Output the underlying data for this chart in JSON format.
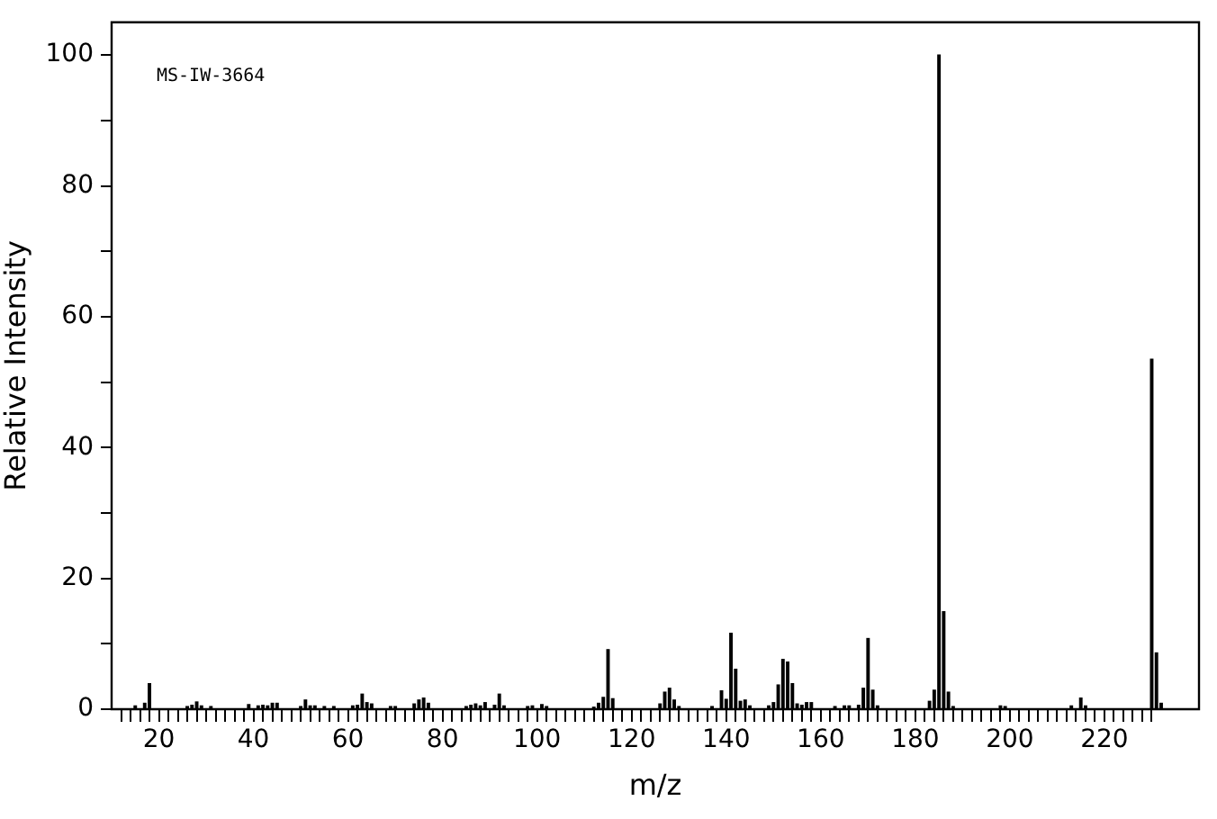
{
  "chart_data": {
    "type": "bar",
    "xlabel": "m/z",
    "ylabel": "Relative Intensity",
    "annotations": [
      "MS-IW-3664"
    ],
    "x": [
      15,
      17,
      18,
      26,
      27,
      28,
      29,
      31,
      39,
      41,
      42,
      43,
      44,
      45,
      50,
      51,
      52,
      53,
      55,
      57,
      61,
      62,
      63,
      64,
      65,
      69,
      70,
      74,
      75,
      76,
      77,
      85,
      86,
      87,
      88,
      89,
      91,
      92,
      93,
      98,
      99,
      101,
      102,
      112,
      113,
      114,
      115,
      116,
      126,
      127,
      128,
      129,
      130,
      137,
      139,
      140,
      141,
      142,
      143,
      144,
      145,
      149,
      150,
      151,
      152,
      153,
      154,
      155,
      156,
      157,
      158,
      163,
      165,
      166,
      168,
      169,
      170,
      171,
      172,
      183,
      184,
      185,
      186,
      187,
      188,
      198,
      199,
      213,
      215,
      216,
      230,
      231,
      232
    ],
    "values": [
      0.5,
      0.9,
      3.9,
      0.4,
      0.6,
      1.1,
      0.5,
      0.4,
      0.7,
      0.5,
      0.6,
      0.5,
      0.9,
      0.9,
      0.4,
      1.4,
      0.5,
      0.5,
      0.4,
      0.4,
      0.5,
      0.6,
      2.3,
      1.0,
      0.8,
      0.4,
      0.4,
      0.8,
      1.4,
      1.7,
      0.9,
      0.4,
      0.6,
      0.8,
      0.5,
      1.0,
      0.6,
      2.3,
      0.5,
      0.4,
      0.5,
      0.7,
      0.4,
      0.3,
      0.9,
      1.8,
      9.1,
      1.6,
      0.8,
      2.6,
      3.2,
      1.4,
      0.4,
      0.4,
      2.8,
      1.5,
      11.6,
      6.1,
      1.2,
      1.4,
      0.5,
      0.5,
      1.0,
      3.7,
      7.6,
      7.2,
      3.9,
      0.8,
      0.6,
      1.0,
      1.0,
      0.4,
      0.5,
      0.5,
      0.6,
      3.2,
      10.8,
      2.9,
      0.5,
      1.2,
      2.9,
      100,
      14.9,
      2.6,
      0.4,
      0.5,
      0.4,
      0.5,
      1.7,
      0.5,
      53.5,
      8.6,
      0.9
    ],
    "color": "#000000",
    "xlim": [
      10,
      240
    ],
    "xticks": [
      {
        "value": 12,
        "label": null
      },
      {
        "value": 14,
        "label": null
      },
      {
        "value": 16,
        "label": null
      },
      {
        "value": 18,
        "label": null
      },
      20,
      {
        "value": 22,
        "label": null
      },
      {
        "value": 24,
        "label": null
      },
      {
        "value": 26,
        "label": null
      },
      {
        "value": 28,
        "label": null
      },
      {
        "value": 30,
        "label": null
      },
      {
        "value": 32,
        "label": null
      },
      {
        "value": 34,
        "label": null
      },
      {
        "value": 36,
        "label": null
      },
      {
        "value": 38,
        "label": null
      },
      40,
      {
        "value": 42,
        "label": null
      },
      {
        "value": 44,
        "label": null
      },
      {
        "value": 46,
        "label": null
      },
      {
        "value": 48,
        "label": null
      },
      {
        "value": 50,
        "label": null
      },
      {
        "value": 52,
        "label": null
      },
      {
        "value": 54,
        "label": null
      },
      {
        "value": 56,
        "label": null
      },
      {
        "value": 58,
        "label": null
      },
      60,
      {
        "value": 62,
        "label": null
      },
      {
        "value": 64,
        "label": null
      },
      {
        "value": 66,
        "label": null
      },
      {
        "value": 68,
        "label": null
      },
      {
        "value": 70,
        "label": null
      },
      {
        "value": 72,
        "label": null
      },
      {
        "value": 74,
        "label": null
      },
      {
        "value": 76,
        "label": null
      },
      {
        "value": 78,
        "label": null
      },
      80,
      {
        "value": 82,
        "label": null
      },
      {
        "value": 84,
        "label": null
      },
      {
        "value": 86,
        "label": null
      },
      {
        "value": 88,
        "label": null
      },
      {
        "value": 90,
        "label": null
      },
      {
        "value": 92,
        "label": null
      },
      {
        "value": 94,
        "label": null
      },
      {
        "value": 96,
        "label": null
      },
      {
        "value": 98,
        "label": null
      },
      100,
      {
        "value": 102,
        "label": null
      },
      {
        "value": 104,
        "label": null
      },
      {
        "value": 106,
        "label": null
      },
      {
        "value": 108,
        "label": null
      },
      {
        "value": 110,
        "label": null
      },
      {
        "value": 112,
        "label": null
      },
      {
        "value": 114,
        "label": null
      },
      {
        "value": 116,
        "label": null
      },
      {
        "value": 118,
        "label": null
      },
      120,
      {
        "value": 122,
        "label": null
      },
      {
        "value": 124,
        "label": null
      },
      {
        "value": 126,
        "label": null
      },
      {
        "value": 128,
        "label": null
      },
      {
        "value": 130,
        "label": null
      },
      {
        "value": 132,
        "label": null
      },
      {
        "value": 134,
        "label": null
      },
      {
        "value": 136,
        "label": null
      },
      {
        "value": 138,
        "label": null
      },
      140,
      {
        "value": 142,
        "label": null
      },
      {
        "value": 144,
        "label": null
      },
      {
        "value": 146,
        "label": null
      },
      {
        "value": 148,
        "label": null
      },
      {
        "value": 150,
        "label": null
      },
      {
        "value": 152,
        "label": null
      },
      {
        "value": 154,
        "label": null
      },
      {
        "value": 156,
        "label": null
      },
      {
        "value": 158,
        "label": null
      },
      160,
      {
        "value": 162,
        "label": null
      },
      {
        "value": 164,
        "label": null
      },
      {
        "value": 166,
        "label": null
      },
      {
        "value": 168,
        "label": null
      },
      {
        "value": 170,
        "label": null
      },
      {
        "value": 172,
        "label": null
      },
      {
        "value": 174,
        "label": null
      },
      {
        "value": 176,
        "label": null
      },
      {
        "value": 178,
        "label": null
      },
      180,
      {
        "value": 182,
        "label": null
      },
      {
        "value": 184,
        "label": null
      },
      {
        "value": 186,
        "label": null
      },
      {
        "value": 188,
        "label": null
      },
      {
        "value": 190,
        "label": null
      },
      {
        "value": 192,
        "label": null
      },
      {
        "value": 194,
        "label": null
      },
      {
        "value": 196,
        "label": null
      },
      {
        "value": 198,
        "label": null
      },
      200,
      {
        "value": 202,
        "label": null
      },
      {
        "value": 204,
        "label": null
      },
      {
        "value": 206,
        "label": null
      },
      {
        "value": 208,
        "label": null
      },
      {
        "value": 210,
        "label": null
      },
      {
        "value": 212,
        "label": null
      },
      {
        "value": 214,
        "label": null
      },
      {
        "value": 216,
        "label": null
      },
      {
        "value": 218,
        "label": null
      },
      220,
      {
        "value": 222,
        "label": null
      },
      {
        "value": 224,
        "label": null
      },
      {
        "value": 226,
        "label": null
      },
      {
        "value": 228,
        "label": null
      },
      {
        "value": 230,
        "label": null
      }
    ],
    "ylim": [
      0,
      105
    ],
    "yticks": [
      0,
      {
        "value": 10,
        "label": null
      },
      20,
      {
        "value": 30,
        "label": null
      },
      40,
      {
        "value": 50,
        "label": null
      },
      60,
      {
        "value": 70,
        "label": null
      },
      80,
      {
        "value": 90,
        "label": null
      },
      100
    ],
    "grid": false,
    "legend": false
  }
}
